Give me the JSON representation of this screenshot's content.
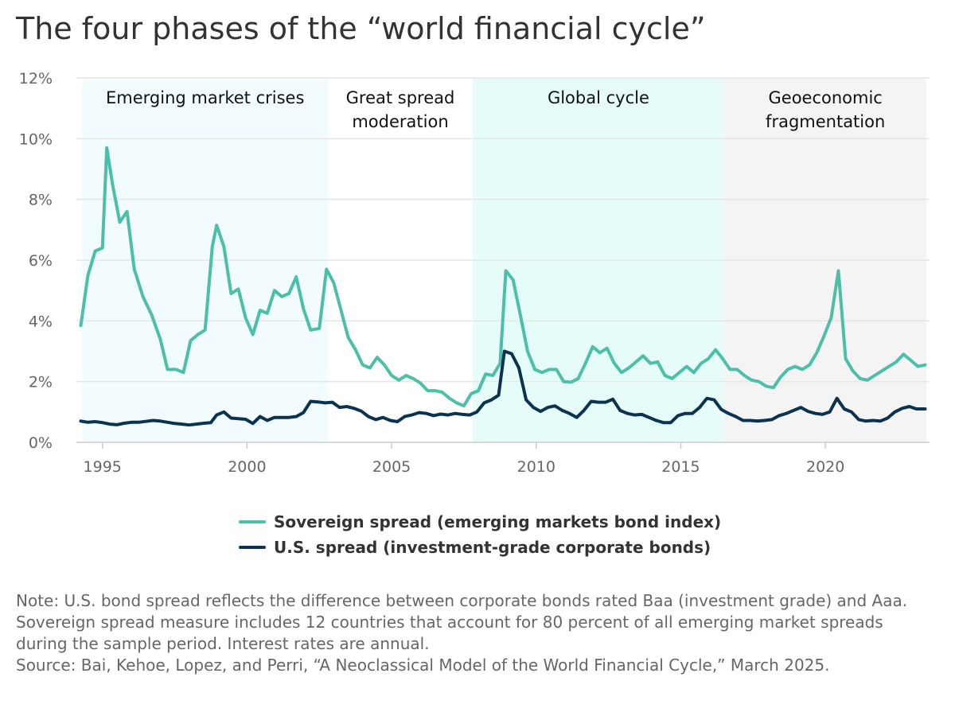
{
  "title": "The four phases of the “world financial cycle”",
  "note": "Note: U.S. bond spread reflects the difference between corporate bonds rated Baa (investment grade) and Aaa. Sovereign spread measure includes 12 countries that account for 80 percent of all emerging market spreads during the sample period. Interest rates are annual.",
  "source": "Source: Bai, Kehoe, Lopez, and Perri, “A Neoclassical Model of the World Financial Cycle,” March 2025.",
  "colors": {
    "sovereign": "#4bbfa8",
    "us": "#0b3350",
    "emerging_bg": "#f2fbfd",
    "global_bg": "#e6fcf9",
    "geo_bg": "#f4f4f4",
    "grid": "#e6e6e6"
  },
  "chart_data": {
    "type": "line",
    "xlim": [
      1994.1,
      2023.6
    ],
    "ylim": [
      0,
      12
    ],
    "x_ticks": [
      "1995",
      "2000",
      "2005",
      "2010",
      "2015",
      "2020"
    ],
    "y_ticks": [
      "0%",
      "2%",
      "4%",
      "6%",
      "8%",
      "10%",
      "12%"
    ],
    "grid": true,
    "legend_position": "bottom",
    "phases": [
      {
        "lines": [
          "Emerging market crises"
        ],
        "start": 1994.3,
        "end": 2002.8,
        "fill": "emerging_bg"
      },
      {
        "lines": [
          "Great spread",
          "moderation"
        ],
        "start": 2002.8,
        "end": 2007.8,
        "fill": ""
      },
      {
        "lines": [
          "Global cycle"
        ],
        "start": 2007.8,
        "end": 2016.5,
        "fill": "global_bg"
      },
      {
        "lines": [
          "Geoeconomic",
          "fragmentation"
        ],
        "start": 2016.5,
        "end": 2023.5,
        "fill": "geo_bg"
      }
    ],
    "series": [
      {
        "name": "Sovereign spread (emerging markets bond index)",
        "color_key": "sovereign",
        "points": [
          [
            1994.25,
            3.85
          ],
          [
            1994.5,
            5.5
          ],
          [
            1994.75,
            6.3
          ],
          [
            1995.0,
            6.4
          ],
          [
            1995.15,
            9.7
          ],
          [
            1995.35,
            8.5
          ],
          [
            1995.6,
            7.25
          ],
          [
            1995.85,
            7.6
          ],
          [
            1996.1,
            5.7
          ],
          [
            1996.4,
            4.8
          ],
          [
            1996.7,
            4.2
          ],
          [
            1997.0,
            3.4
          ],
          [
            1997.25,
            2.4
          ],
          [
            1997.55,
            2.4
          ],
          [
            1997.8,
            2.3
          ],
          [
            1998.05,
            3.35
          ],
          [
            1998.3,
            3.55
          ],
          [
            1998.55,
            3.7
          ],
          [
            1998.8,
            6.45
          ],
          [
            1998.95,
            7.15
          ],
          [
            1999.2,
            6.45
          ],
          [
            1999.45,
            4.9
          ],
          [
            1999.7,
            5.05
          ],
          [
            1999.95,
            4.1
          ],
          [
            2000.2,
            3.55
          ],
          [
            2000.45,
            4.35
          ],
          [
            2000.7,
            4.25
          ],
          [
            2000.95,
            5.0
          ],
          [
            2001.2,
            4.8
          ],
          [
            2001.45,
            4.9
          ],
          [
            2001.7,
            5.45
          ],
          [
            2001.95,
            4.4
          ],
          [
            2002.2,
            3.7
          ],
          [
            2002.5,
            3.75
          ],
          [
            2002.75,
            5.7
          ],
          [
            2003.0,
            5.25
          ],
          [
            2003.25,
            4.35
          ],
          [
            2003.5,
            3.45
          ],
          [
            2003.75,
            3.05
          ],
          [
            2004.0,
            2.55
          ],
          [
            2004.25,
            2.45
          ],
          [
            2004.5,
            2.8
          ],
          [
            2004.75,
            2.55
          ],
          [
            2005.0,
            2.2
          ],
          [
            2005.25,
            2.05
          ],
          [
            2005.5,
            2.2
          ],
          [
            2005.75,
            2.1
          ],
          [
            2006.0,
            1.95
          ],
          [
            2006.25,
            1.7
          ],
          [
            2006.5,
            1.7
          ],
          [
            2006.75,
            1.65
          ],
          [
            2007.0,
            1.45
          ],
          [
            2007.25,
            1.3
          ],
          [
            2007.5,
            1.2
          ],
          [
            2007.75,
            1.6
          ],
          [
            2008.0,
            1.7
          ],
          [
            2008.25,
            2.25
          ],
          [
            2008.5,
            2.2
          ],
          [
            2008.75,
            2.6
          ],
          [
            2008.95,
            5.65
          ],
          [
            2009.2,
            5.35
          ],
          [
            2009.45,
            4.2
          ],
          [
            2009.7,
            3.0
          ],
          [
            2009.95,
            2.4
          ],
          [
            2010.2,
            2.3
          ],
          [
            2010.45,
            2.4
          ],
          [
            2010.7,
            2.4
          ],
          [
            2010.95,
            2.0
          ],
          [
            2011.2,
            1.98
          ],
          [
            2011.45,
            2.1
          ],
          [
            2011.7,
            2.6
          ],
          [
            2011.95,
            3.15
          ],
          [
            2012.2,
            2.95
          ],
          [
            2012.45,
            3.1
          ],
          [
            2012.7,
            2.6
          ],
          [
            2012.95,
            2.3
          ],
          [
            2013.2,
            2.45
          ],
          [
            2013.45,
            2.65
          ],
          [
            2013.7,
            2.85
          ],
          [
            2013.95,
            2.6
          ],
          [
            2014.2,
            2.65
          ],
          [
            2014.45,
            2.2
          ],
          [
            2014.7,
            2.1
          ],
          [
            2014.95,
            2.3
          ],
          [
            2015.2,
            2.5
          ],
          [
            2015.45,
            2.3
          ],
          [
            2015.7,
            2.6
          ],
          [
            2015.95,
            2.75
          ],
          [
            2016.2,
            3.05
          ],
          [
            2016.45,
            2.75
          ],
          [
            2016.7,
            2.4
          ],
          [
            2016.95,
            2.4
          ],
          [
            2017.2,
            2.2
          ],
          [
            2017.45,
            2.05
          ],
          [
            2017.7,
            2.0
          ],
          [
            2017.95,
            1.85
          ],
          [
            2018.2,
            1.8
          ],
          [
            2018.45,
            2.15
          ],
          [
            2018.7,
            2.4
          ],
          [
            2018.95,
            2.5
          ],
          [
            2019.2,
            2.4
          ],
          [
            2019.45,
            2.55
          ],
          [
            2019.7,
            2.95
          ],
          [
            2019.95,
            3.5
          ],
          [
            2020.2,
            4.1
          ],
          [
            2020.45,
            5.65
          ],
          [
            2020.7,
            2.75
          ],
          [
            2020.95,
            2.35
          ],
          [
            2021.2,
            2.1
          ],
          [
            2021.45,
            2.05
          ],
          [
            2021.7,
            2.2
          ],
          [
            2021.95,
            2.35
          ],
          [
            2022.2,
            2.5
          ],
          [
            2022.45,
            2.65
          ],
          [
            2022.7,
            2.9
          ],
          [
            2022.95,
            2.7
          ],
          [
            2023.2,
            2.5
          ],
          [
            2023.45,
            2.55
          ]
        ]
      },
      {
        "name": "U.S. spread (investment-grade corporate bonds)",
        "color_key": "us",
        "points": [
          [
            1994.25,
            0.7
          ],
          [
            1994.5,
            0.66
          ],
          [
            1994.75,
            0.68
          ],
          [
            1995.0,
            0.65
          ],
          [
            1995.25,
            0.6
          ],
          [
            1995.5,
            0.58
          ],
          [
            1995.75,
            0.63
          ],
          [
            1996.0,
            0.66
          ],
          [
            1996.25,
            0.66
          ],
          [
            1996.5,
            0.69
          ],
          [
            1996.75,
            0.72
          ],
          [
            1997.0,
            0.7
          ],
          [
            1997.25,
            0.66
          ],
          [
            1997.5,
            0.62
          ],
          [
            1997.75,
            0.6
          ],
          [
            1998.0,
            0.57
          ],
          [
            1998.25,
            0.6
          ],
          [
            1998.5,
            0.63
          ],
          [
            1998.75,
            0.65
          ],
          [
            1998.95,
            0.9
          ],
          [
            1999.2,
            1.0
          ],
          [
            1999.45,
            0.8
          ],
          [
            1999.7,
            0.78
          ],
          [
            1999.95,
            0.76
          ],
          [
            2000.2,
            0.62
          ],
          [
            2000.45,
            0.85
          ],
          [
            2000.7,
            0.72
          ],
          [
            2000.95,
            0.82
          ],
          [
            2001.2,
            0.82
          ],
          [
            2001.45,
            0.82
          ],
          [
            2001.7,
            0.85
          ],
          [
            2001.95,
            0.98
          ],
          [
            2002.2,
            1.35
          ],
          [
            2002.45,
            1.33
          ],
          [
            2002.7,
            1.3
          ],
          [
            2002.95,
            1.32
          ],
          [
            2003.2,
            1.15
          ],
          [
            2003.45,
            1.18
          ],
          [
            2003.7,
            1.12
          ],
          [
            2003.95,
            1.03
          ],
          [
            2004.2,
            0.85
          ],
          [
            2004.45,
            0.75
          ],
          [
            2004.7,
            0.82
          ],
          [
            2004.95,
            0.72
          ],
          [
            2005.2,
            0.68
          ],
          [
            2005.45,
            0.85
          ],
          [
            2005.7,
            0.9
          ],
          [
            2005.95,
            0.98
          ],
          [
            2006.2,
            0.95
          ],
          [
            2006.45,
            0.88
          ],
          [
            2006.7,
            0.93
          ],
          [
            2006.95,
            0.9
          ],
          [
            2007.2,
            0.95
          ],
          [
            2007.45,
            0.92
          ],
          [
            2007.7,
            0.9
          ],
          [
            2007.95,
            1.0
          ],
          [
            2008.2,
            1.3
          ],
          [
            2008.45,
            1.4
          ],
          [
            2008.7,
            1.55
          ],
          [
            2008.9,
            3.0
          ],
          [
            2009.15,
            2.92
          ],
          [
            2009.4,
            2.45
          ],
          [
            2009.65,
            1.4
          ],
          [
            2009.9,
            1.15
          ],
          [
            2010.15,
            1.02
          ],
          [
            2010.4,
            1.15
          ],
          [
            2010.65,
            1.2
          ],
          [
            2010.9,
            1.05
          ],
          [
            2011.15,
            0.95
          ],
          [
            2011.4,
            0.82
          ],
          [
            2011.65,
            1.05
          ],
          [
            2011.9,
            1.35
          ],
          [
            2012.15,
            1.32
          ],
          [
            2012.4,
            1.32
          ],
          [
            2012.65,
            1.42
          ],
          [
            2012.9,
            1.05
          ],
          [
            2013.15,
            0.95
          ],
          [
            2013.4,
            0.9
          ],
          [
            2013.65,
            0.92
          ],
          [
            2013.9,
            0.82
          ],
          [
            2014.15,
            0.72
          ],
          [
            2014.4,
            0.65
          ],
          [
            2014.65,
            0.65
          ],
          [
            2014.9,
            0.88
          ],
          [
            2015.15,
            0.95
          ],
          [
            2015.4,
            0.95
          ],
          [
            2015.65,
            1.15
          ],
          [
            2015.9,
            1.45
          ],
          [
            2016.15,
            1.4
          ],
          [
            2016.4,
            1.08
          ],
          [
            2016.65,
            0.95
          ],
          [
            2016.9,
            0.85
          ],
          [
            2017.15,
            0.72
          ],
          [
            2017.4,
            0.72
          ],
          [
            2017.65,
            0.7
          ],
          [
            2017.9,
            0.72
          ],
          [
            2018.15,
            0.75
          ],
          [
            2018.4,
            0.88
          ],
          [
            2018.65,
            0.95
          ],
          [
            2018.9,
            1.05
          ],
          [
            2019.15,
            1.15
          ],
          [
            2019.4,
            1.02
          ],
          [
            2019.65,
            0.95
          ],
          [
            2019.9,
            0.92
          ],
          [
            2020.15,
            1.0
          ],
          [
            2020.4,
            1.45
          ],
          [
            2020.65,
            1.1
          ],
          [
            2020.9,
            1.0
          ],
          [
            2021.15,
            0.75
          ],
          [
            2021.4,
            0.7
          ],
          [
            2021.65,
            0.72
          ],
          [
            2021.9,
            0.7
          ],
          [
            2022.15,
            0.8
          ],
          [
            2022.4,
            1.0
          ],
          [
            2022.65,
            1.12
          ],
          [
            2022.9,
            1.18
          ],
          [
            2023.15,
            1.1
          ],
          [
            2023.45,
            1.1
          ]
        ]
      }
    ]
  }
}
